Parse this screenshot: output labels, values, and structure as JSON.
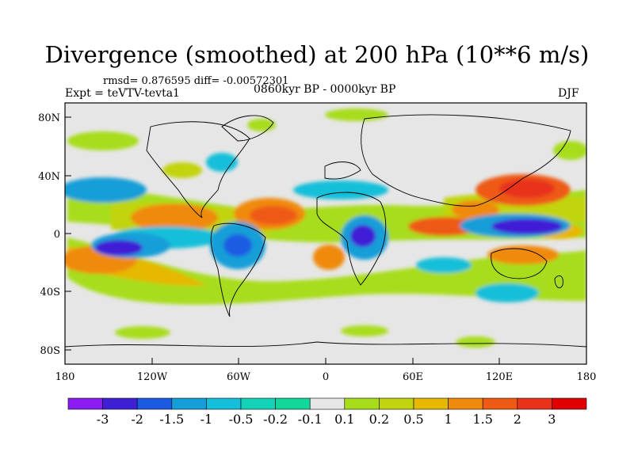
{
  "title": "Divergence (smoothed) at 200 hPa (10**6 m/s)",
  "stats": "rmsd= 0.876595 diff= -0.00572301",
  "experiment": "Expt = teVTV-tevta1",
  "period": "0860kyr BP - 0000kyr BP",
  "season": "DJF",
  "map": {
    "lat_labels": [
      "80N",
      "40N",
      "0",
      "40S",
      "80S"
    ],
    "lon_labels": [
      "180",
      "120W",
      "60W",
      "0",
      "60E",
      "120E",
      "180"
    ]
  },
  "colorbar": {
    "labels": [
      "-3",
      "-2",
      "-1.5",
      "-1",
      "-0.5",
      "-0.2",
      "-0.1",
      "0.1",
      "0.2",
      "0.5",
      "1",
      "1.5",
      "2",
      "3"
    ],
    "colors": [
      "#8a1cf2",
      "#3f1fd6",
      "#1b5be2",
      "#159ed8",
      "#14bfd9",
      "#13d2b8",
      "#13d69a",
      "#e6e6e6",
      "#a7dd1a",
      "#c2d40f",
      "#e6b800",
      "#f08a0c",
      "#ee5a14",
      "#e8321a",
      "#e00000"
    ]
  },
  "colors": {
    "background": "#ffffff",
    "neutral": "#e6e6e6",
    "coast": "#000000"
  }
}
